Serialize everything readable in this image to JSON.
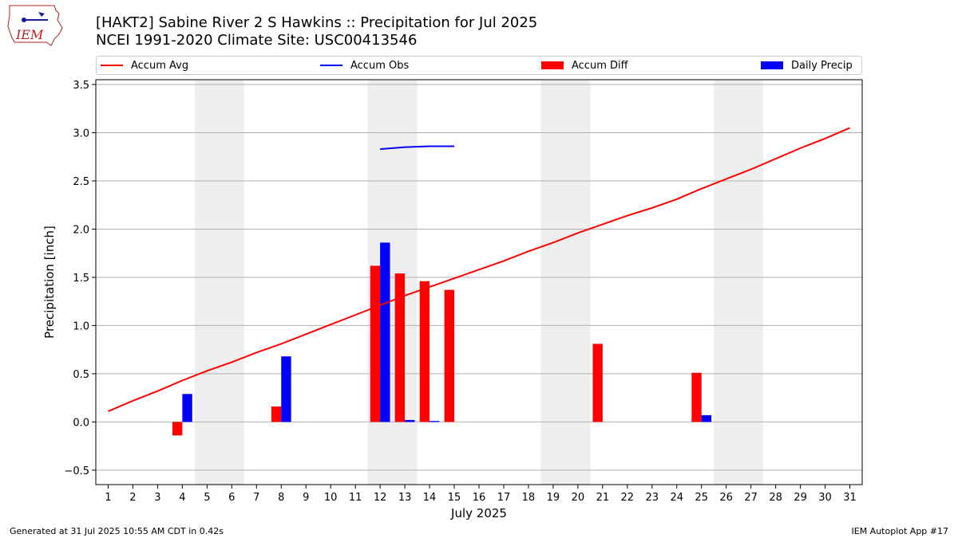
{
  "header": {
    "title_line1": "[HAKT2] Sabine River 2 S Hawkins :: Precipitation for Jul 2025",
    "title_line2": "NCEI 1991-2020 Climate Site: USC00413546",
    "logo_text": "IEM"
  },
  "legend": {
    "items": [
      {
        "label": "Accum Avg",
        "color": "#ff0000",
        "kind": "line"
      },
      {
        "label": "Accum Obs",
        "color": "#0000ff",
        "kind": "line"
      },
      {
        "label": "Accum Diff",
        "color": "#ff0000",
        "kind": "box"
      },
      {
        "label": "Daily Precip",
        "color": "#0000ff",
        "kind": "box"
      }
    ]
  },
  "footer": {
    "left": "Generated at 31 Jul 2025 10:55 AM CDT in 0.42s",
    "right": "IEM Autoplot App #17"
  },
  "chart_data": {
    "type": "bar",
    "xlabel": "July 2025",
    "ylabel": "Precipitation [inch]",
    "xlim": [
      0.5,
      31.5
    ],
    "ylim": [
      -0.65,
      3.55
    ],
    "x_ticks": [
      1,
      2,
      3,
      4,
      5,
      6,
      7,
      8,
      9,
      10,
      11,
      12,
      13,
      14,
      15,
      16,
      17,
      18,
      19,
      20,
      21,
      22,
      23,
      24,
      25,
      26,
      27,
      28,
      29,
      30,
      31
    ],
    "y_ticks": [
      -0.5,
      0.0,
      0.5,
      1.0,
      1.5,
      2.0,
      2.5,
      3.0,
      3.5
    ],
    "y_tick_labels": [
      "−0.5",
      "0.0",
      "0.5",
      "1.0",
      "1.5",
      "2.0",
      "2.5",
      "3.0",
      "3.5"
    ],
    "grid": "horizontal",
    "weekend_shading": [
      [
        5,
        6
      ],
      [
        12,
        13
      ],
      [
        19,
        20
      ],
      [
        26,
        27
      ]
    ],
    "series": [
      {
        "name": "Accum Avg",
        "kind": "line",
        "color": "#ff0000",
        "x": [
          1,
          2,
          3,
          4,
          5,
          6,
          7,
          8,
          9,
          10,
          11,
          12,
          13,
          14,
          15,
          16,
          17,
          18,
          19,
          20,
          21,
          22,
          23,
          24,
          25,
          26,
          27,
          28,
          29,
          30,
          31
        ],
        "y": [
          0.11,
          0.22,
          0.32,
          0.43,
          0.53,
          0.62,
          0.72,
          0.81,
          0.91,
          1.01,
          1.11,
          1.21,
          1.31,
          1.4,
          1.49,
          1.58,
          1.67,
          1.77,
          1.86,
          1.96,
          2.05,
          2.14,
          2.22,
          2.31,
          2.42,
          2.52,
          2.62,
          2.73,
          2.84,
          2.94,
          3.05
        ]
      },
      {
        "name": "Accum Obs",
        "kind": "line",
        "color": "#0000ff",
        "x": [
          12,
          13,
          14,
          15
        ],
        "y": [
          2.83,
          2.85,
          2.86,
          2.86
        ]
      },
      {
        "name": "Accum Diff",
        "kind": "bar",
        "color": "#ff0000",
        "offset": -0.2,
        "x": [
          4,
          8,
          12,
          13,
          14,
          15,
          21,
          25
        ],
        "y": [
          -0.14,
          0.16,
          1.62,
          1.54,
          1.46,
          1.37,
          0.81,
          0.51
        ]
      },
      {
        "name": "Daily Precip",
        "kind": "bar",
        "color": "#0000ff",
        "offset": 0.2,
        "x": [
          4,
          8,
          12,
          13,
          14,
          25
        ],
        "y": [
          0.29,
          0.68,
          1.86,
          0.02,
          0.01,
          0.07
        ]
      }
    ]
  }
}
